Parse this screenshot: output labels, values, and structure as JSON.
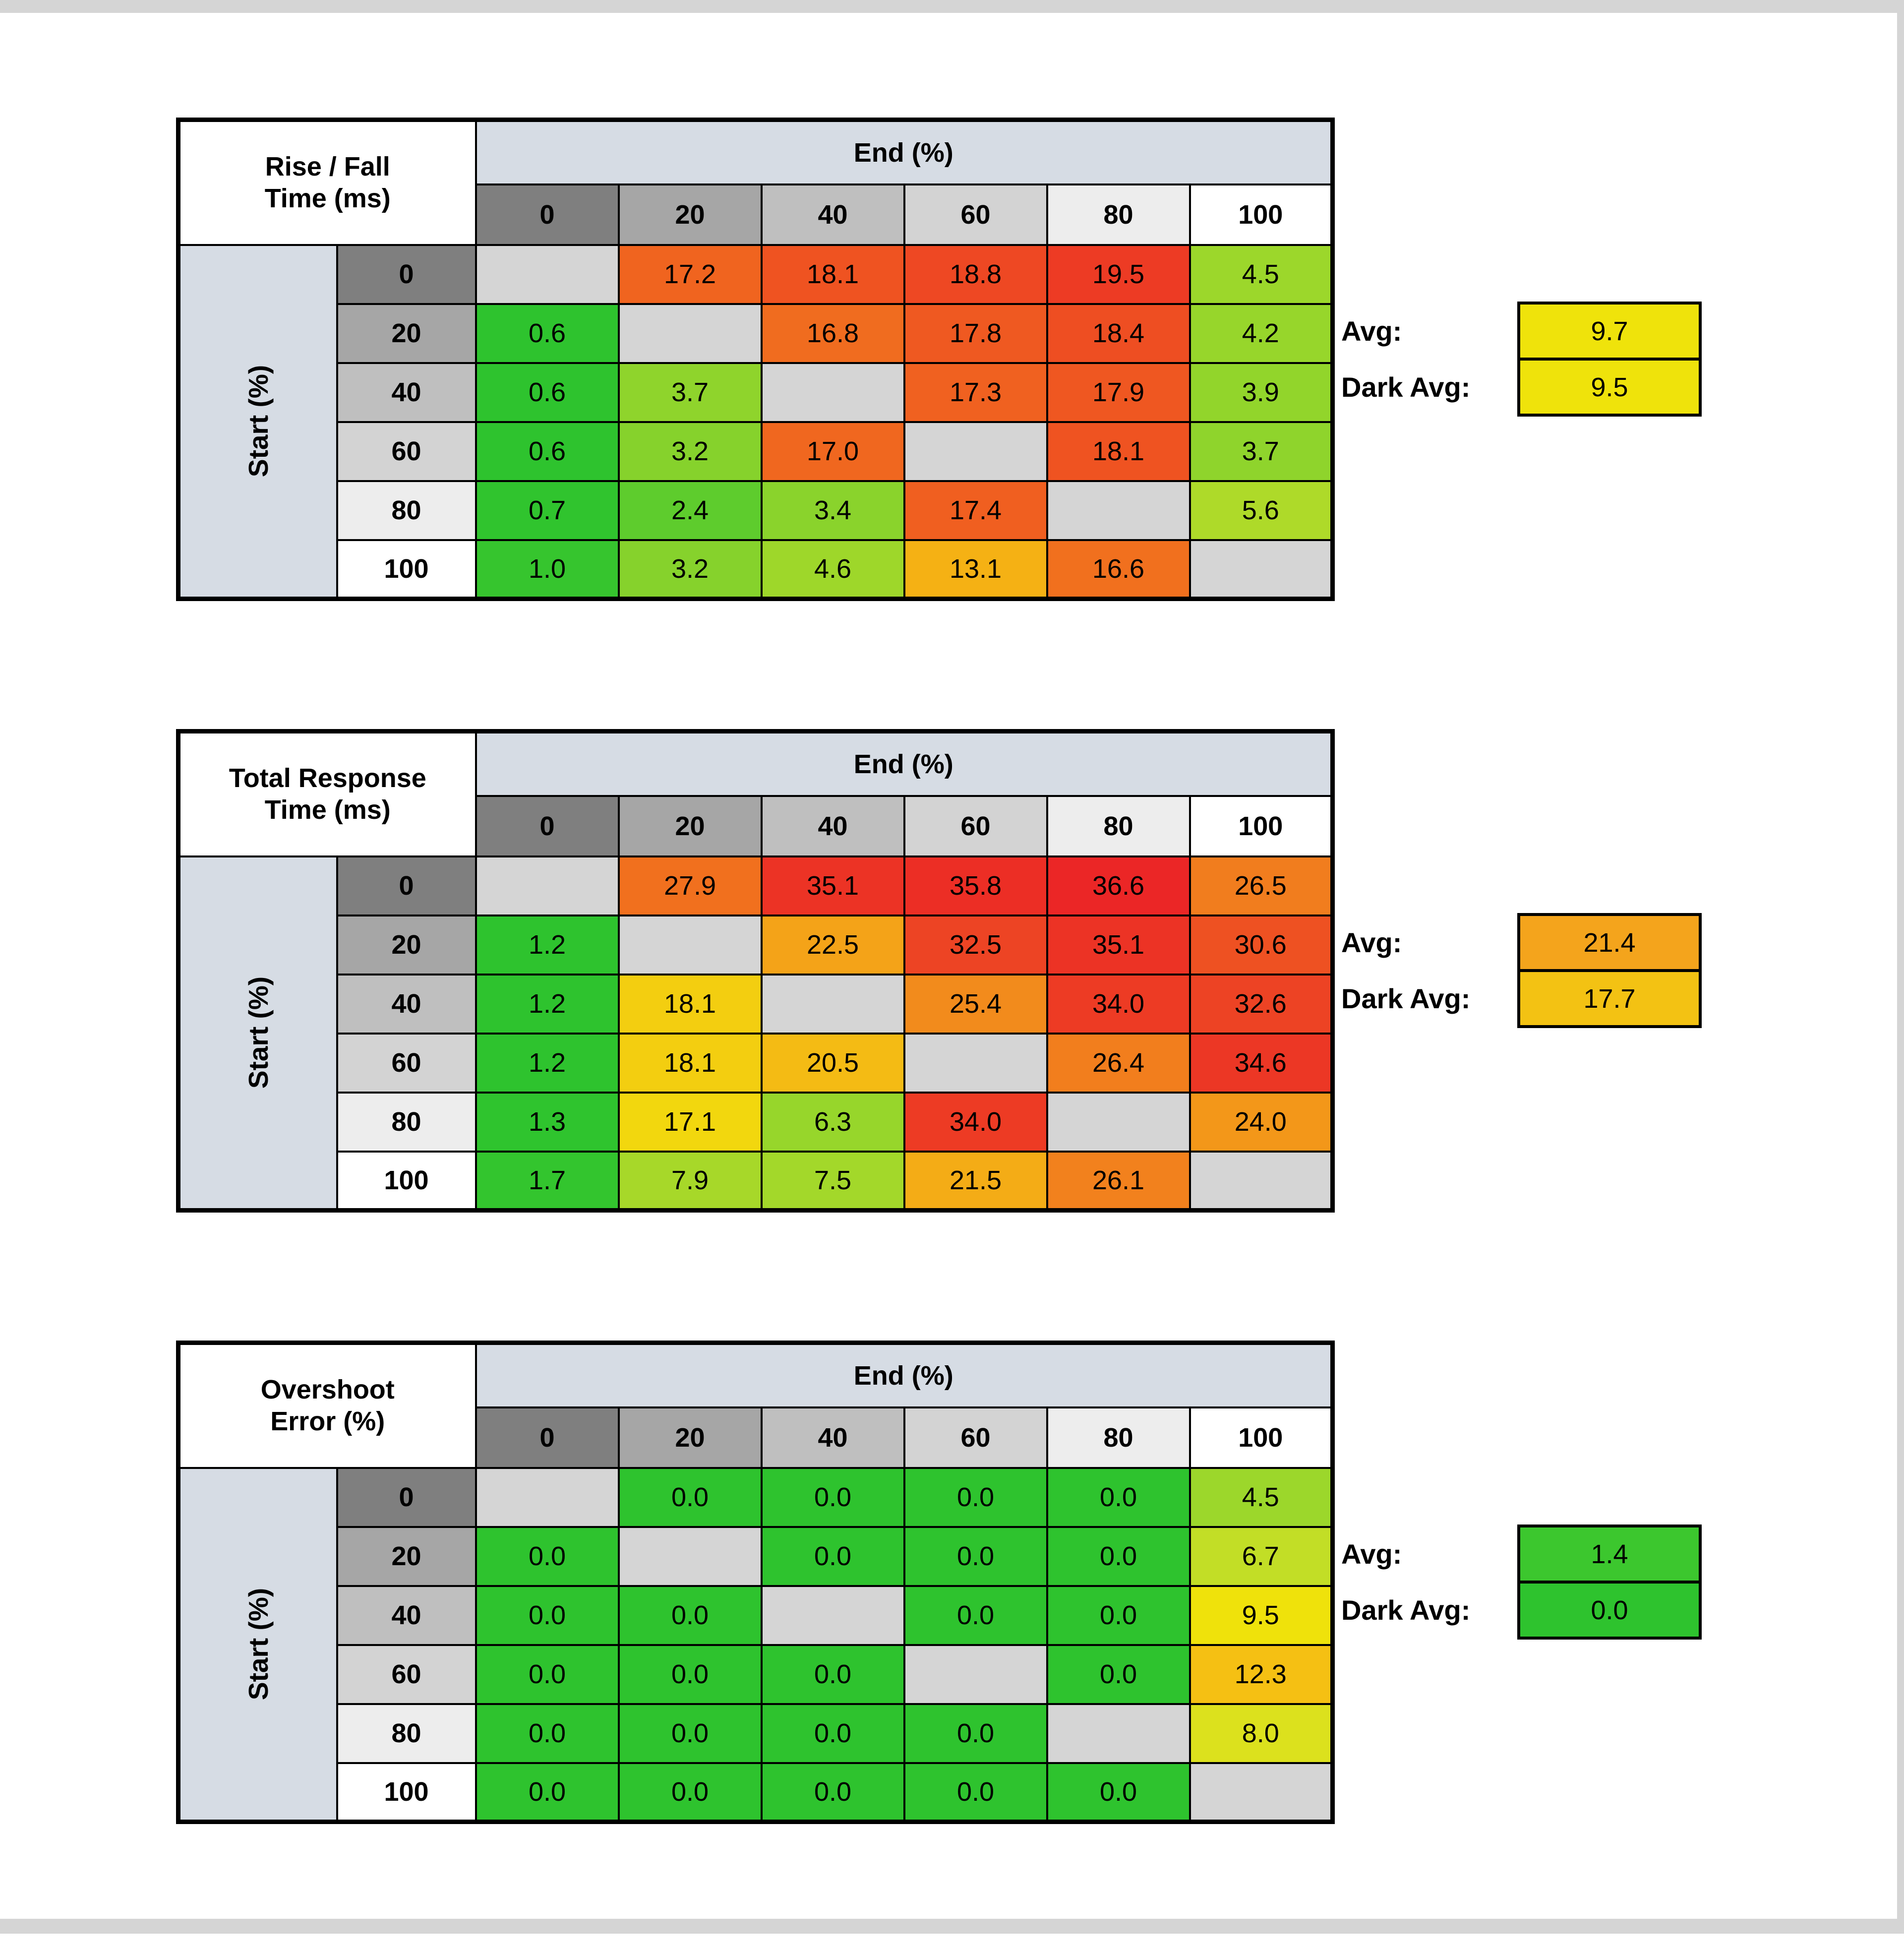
{
  "page": {
    "background": "#FFFFFF",
    "frame_color": "#D5D5D5"
  },
  "palette": {
    "end_header_bg": "#D6DCE4",
    "start_header_bg": "#D6DCE4",
    "diagonal_bg": "#D5D5D5",
    "header_grays": [
      "#7F7F7F",
      "#A6A6A6",
      "#BFBFBF",
      "#D3D3D3",
      "#EDEDED",
      "#FFFFFF"
    ]
  },
  "chart_data": [
    {
      "type": "heatmap",
      "name": "rise-fall-time",
      "title": "Rise / Fall Time (ms)",
      "title_lines": [
        "Rise / Fall",
        "Time (ms)"
      ],
      "x_header": "End (%)",
      "y_header": "Start (%)",
      "columns": [
        "0",
        "20",
        "40",
        "60",
        "80",
        "100"
      ],
      "rows": [
        "0",
        "20",
        "40",
        "60",
        "80",
        "100"
      ],
      "values": [
        [
          null,
          17.2,
          18.1,
          18.8,
          19.5,
          4.5
        ],
        [
          0.6,
          null,
          16.8,
          17.8,
          18.4,
          4.2
        ],
        [
          0.6,
          3.7,
          null,
          17.3,
          17.9,
          3.9
        ],
        [
          0.6,
          3.2,
          17.0,
          null,
          18.1,
          3.7
        ],
        [
          0.7,
          2.4,
          3.4,
          17.4,
          null,
          5.6
        ],
        [
          1.0,
          3.2,
          4.6,
          13.1,
          16.6,
          null
        ]
      ],
      "cell_colors": [
        [
          null,
          "#F0641F",
          "#EF5321",
          "#EE4823",
          "#ED3B24",
          "#9CD72B"
        ],
        [
          "#2EC32E",
          null,
          "#F06C1F",
          "#EF5921",
          "#EE4E22",
          "#97D62B"
        ],
        [
          "#2EC32E",
          "#8FD42C",
          null,
          "#F06120",
          "#EF5721",
          "#92D52B"
        ],
        [
          "#2EC32E",
          "#86D22C",
          "#F0671F",
          null,
          "#EF5321",
          "#8FD42C"
        ],
        [
          "#30C42E",
          "#5ECC2D",
          "#8AD32C",
          "#F05F20",
          null,
          "#AEDA29"
        ],
        [
          "#36C52E",
          "#86D22C",
          "#9ED72A",
          "#F5B114",
          "#F1701E",
          null
        ]
      ],
      "stats": [
        {
          "label": "Avg:",
          "value": 9.7,
          "color": "#EFE30B"
        },
        {
          "label": "Dark Avg:",
          "value": 9.5,
          "color": "#EFE30B"
        }
      ]
    },
    {
      "type": "heatmap",
      "name": "total-response-time",
      "title": "Total Response Time (ms)",
      "title_lines": [
        "Total Response",
        "Time (ms)"
      ],
      "x_header": "End (%)",
      "y_header": "Start (%)",
      "columns": [
        "0",
        "20",
        "40",
        "60",
        "80",
        "100"
      ],
      "rows": [
        "0",
        "20",
        "40",
        "60",
        "80",
        "100"
      ],
      "values": [
        [
          null,
          27.9,
          35.1,
          35.8,
          36.6,
          26.5
        ],
        [
          1.2,
          null,
          22.5,
          32.5,
          35.1,
          30.6
        ],
        [
          1.2,
          18.1,
          null,
          25.4,
          34.0,
          32.6
        ],
        [
          1.2,
          18.1,
          20.5,
          null,
          26.4,
          34.6
        ],
        [
          1.3,
          17.1,
          6.3,
          34.0,
          null,
          24.0
        ],
        [
          1.7,
          7.9,
          7.5,
          21.5,
          26.1,
          null
        ]
      ],
      "cell_colors": [
        [
          null,
          "#F1701E",
          "#EC3325",
          "#EC2E25",
          "#EB2626",
          "#F17D1E"
        ],
        [
          "#2EC32E",
          null,
          "#F4A318",
          "#ED4424",
          "#EC3325",
          "#EE5122"
        ],
        [
          "#2EC32E",
          "#F3CE10",
          null,
          "#F28B1C",
          "#ED3B24",
          "#ED4324"
        ],
        [
          "#2EC32E",
          "#F3CE10",
          "#F4BB14",
          null,
          "#F27E1D",
          "#EC3725"
        ],
        [
          "#2FC42E",
          "#F2D70E",
          "#97D62B",
          "#ED3B24",
          null,
          "#F39719"
        ],
        [
          "#33C52E",
          "#A7D829",
          "#A3D82A",
          "#F4AC16",
          "#F2811D",
          null
        ]
      ],
      "stats": [
        {
          "label": "Avg:",
          "value": 21.4,
          "color": "#F4A41C"
        },
        {
          "label": "Dark Avg:",
          "value": 17.7,
          "color": "#F3C213"
        }
      ]
    },
    {
      "type": "heatmap",
      "name": "overshoot-error",
      "title": "Overshoot Error (%)",
      "title_lines": [
        "Overshoot",
        "Error (%)"
      ],
      "x_header": "End (%)",
      "y_header": "Start (%)",
      "columns": [
        "0",
        "20",
        "40",
        "60",
        "80",
        "100"
      ],
      "rows": [
        "0",
        "20",
        "40",
        "60",
        "80",
        "100"
      ],
      "values": [
        [
          null,
          0.0,
          0.0,
          0.0,
          0.0,
          4.5
        ],
        [
          0.0,
          null,
          0.0,
          0.0,
          0.0,
          6.7
        ],
        [
          0.0,
          0.0,
          null,
          0.0,
          0.0,
          9.5
        ],
        [
          0.0,
          0.0,
          0.0,
          null,
          0.0,
          12.3
        ],
        [
          0.0,
          0.0,
          0.0,
          0.0,
          null,
          8.0
        ],
        [
          0.0,
          0.0,
          0.0,
          0.0,
          0.0,
          null
        ]
      ],
      "cell_colors": [
        [
          null,
          "#2EC32E",
          "#2EC32E",
          "#2EC32E",
          "#2EC32E",
          "#9CD72B"
        ],
        [
          "#2EC32E",
          null,
          "#2EC32E",
          "#2EC32E",
          "#2EC32E",
          "#C2DE26"
        ],
        [
          "#2EC32E",
          "#2EC32E",
          null,
          "#2EC32E",
          "#2EC32E",
          "#EFE20B"
        ],
        [
          "#2EC32E",
          "#2EC32E",
          "#2EC32E",
          null,
          "#2EC32E",
          "#F5C013"
        ],
        [
          "#2EC32E",
          "#2EC32E",
          "#2EC32E",
          "#2EC32E",
          null,
          "#DCE11D"
        ],
        [
          "#2EC32E",
          "#2EC32E",
          "#2EC32E",
          "#2EC32E",
          "#2EC32E",
          null
        ]
      ],
      "stats": [
        {
          "label": "Avg:",
          "value": 1.4,
          "color": "#3CC72E"
        },
        {
          "label": "Dark Avg:",
          "value": 0.0,
          "color": "#2EC32E"
        }
      ]
    }
  ]
}
